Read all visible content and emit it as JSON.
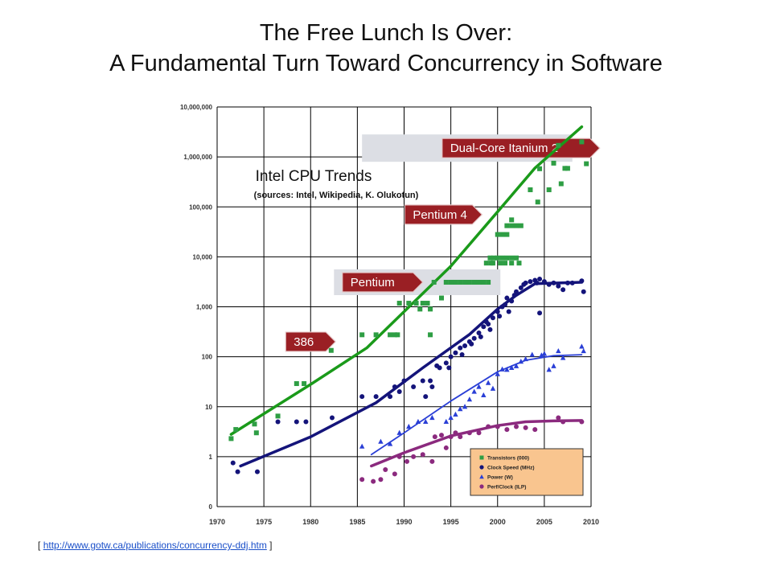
{
  "slide": {
    "title_line1": "The Free Lunch Is Over:",
    "title_line2": "A Fundamental Turn Toward Concurrency in Software",
    "source_prefix": "[",
    "source_url": "http://www.gotw.ca/publications/concurrency-ddj.htm",
    "source_suffix": "]"
  },
  "chart_data": {
    "type": "scatter",
    "title": "Intel CPU Trends",
    "subtitle": "(sources: Intel, Wikipedia, K. Olukotun)",
    "y_scale": "log",
    "y_ticks": [
      "0",
      "1",
      "10",
      "100",
      "1,000",
      "10,000",
      "100,000",
      "1,000,000",
      "10,000,000"
    ],
    "y_tick_values": [
      0.1,
      1,
      10,
      100,
      1000,
      10000,
      100000,
      1000000,
      10000000
    ],
    "x_ticks": [
      "1970",
      "1975",
      "1980",
      "1985",
      "1990",
      "1995",
      "2000",
      "2005",
      "2010"
    ],
    "xlim": [
      1970,
      2010
    ],
    "grid": true,
    "legend_position": "bottom-right",
    "colors": {
      "transistors": "#2e9e44",
      "clock": "#14147a",
      "power": "#2a3fd6",
      "perf": "#8b2a7e",
      "transistor_trend": "#1a9a1a",
      "legend_bg": "#f9c58f",
      "arrow_fill": "#9a1f24",
      "band_fill": "#dcdee4"
    },
    "annotations": [
      {
        "label": "Dual-Core Itanium 2",
        "x": 2002.5,
        "y": 1500000
      },
      {
        "label": "Pentium 4",
        "x": 1994.2,
        "y": 70000
      },
      {
        "label": "Pentium",
        "x": 1987.7,
        "y": 3100
      },
      {
        "label": "386",
        "x": 1980.0,
        "y": 200
      }
    ],
    "series": [
      {
        "name": "Transistors (000)",
        "marker": "square",
        "trend": [
          [
            1971.5,
            2.8
          ],
          [
            1980,
            28
          ],
          [
            1986,
            150
          ],
          [
            1990,
            800
          ],
          [
            1995,
            6500
          ],
          [
            2000,
            80000
          ],
          [
            2004,
            600000
          ],
          [
            2009,
            4000000
          ]
        ],
        "points": [
          [
            1971.5,
            2.3
          ],
          [
            1972,
            3.5
          ],
          [
            1974,
            4.5
          ],
          [
            1974.2,
            3
          ],
          [
            1976.5,
            6.5
          ],
          [
            1978.5,
            29
          ],
          [
            1979.3,
            29
          ],
          [
            1982.2,
            134
          ],
          [
            1985.5,
            275
          ],
          [
            1987,
            275
          ],
          [
            1988.5,
            275
          ],
          [
            1989,
            275
          ],
          [
            1989.3,
            275
          ],
          [
            1989.5,
            1180
          ],
          [
            1990.5,
            1180
          ],
          [
            1991.3,
            1180
          ],
          [
            1991.7,
            900
          ],
          [
            1992,
            1180
          ],
          [
            1992.5,
            1180
          ],
          [
            1992.8,
            900
          ],
          [
            1992.8,
            275
          ],
          [
            1993.2,
            3100
          ],
          [
            1994,
            1500
          ],
          [
            1994.5,
            3100
          ],
          [
            1995,
            3100
          ],
          [
            1995.5,
            3100
          ],
          [
            1996,
            3100
          ],
          [
            1996.5,
            3100
          ],
          [
            1997,
            3100
          ],
          [
            1997.5,
            3100
          ],
          [
            1998,
            3100
          ],
          [
            1998.5,
            3100
          ],
          [
            1998.8,
            7500
          ],
          [
            1999,
            3100
          ],
          [
            1999.2,
            9500
          ],
          [
            1999.6,
            9500
          ],
          [
            2000,
            9500
          ],
          [
            2000.5,
            9500
          ],
          [
            2001,
            9500
          ],
          [
            2001.5,
            9500
          ],
          [
            2002,
            9500
          ],
          [
            2002.3,
            7500
          ],
          [
            1999.3,
            7500
          ],
          [
            1999.5,
            7500
          ],
          [
            2000.3,
            7500
          ],
          [
            2000.8,
            7500
          ],
          [
            2001.5,
            7500
          ],
          [
            2000,
            28000
          ],
          [
            2000.5,
            28000
          ],
          [
            2001,
            28000
          ],
          [
            2001,
            42000
          ],
          [
            2001.5,
            42000
          ],
          [
            2002,
            42000
          ],
          [
            2002.5,
            42000
          ],
          [
            2001.5,
            55000
          ],
          [
            2003.5,
            220000
          ],
          [
            2004.3,
            125000
          ],
          [
            2004.5,
            580000
          ],
          [
            2005.5,
            220000
          ],
          [
            2006,
            750000
          ],
          [
            2006.5,
            1700000
          ],
          [
            2006.8,
            290000
          ],
          [
            2007.2,
            590000
          ],
          [
            2007.5,
            590000
          ],
          [
            2009,
            2000000
          ],
          [
            2009.5,
            730000
          ]
        ]
      },
      {
        "name": "Clock Speed (MHz)",
        "marker": "circle",
        "trend": [
          [
            1972.5,
            0.65
          ],
          [
            1980,
            2.5
          ],
          [
            1987,
            12
          ],
          [
            1992,
            60
          ],
          [
            1997,
            280
          ],
          [
            2000,
            900
          ],
          [
            2002,
            1700
          ],
          [
            2004,
            2900
          ],
          [
            2009,
            3100
          ]
        ],
        "points": [
          [
            1971.7,
            0.75
          ],
          [
            1972.2,
            0.5
          ],
          [
            1974.3,
            0.5
          ],
          [
            1976.5,
            5
          ],
          [
            1978.5,
            5
          ],
          [
            1979.5,
            5
          ],
          [
            1982.3,
            6
          ],
          [
            1985.5,
            16
          ],
          [
            1987,
            16
          ],
          [
            1988.5,
            16
          ],
          [
            1989,
            25
          ],
          [
            1989.5,
            20
          ],
          [
            1990,
            33
          ],
          [
            1991,
            25
          ],
          [
            1992,
            33
          ],
          [
            1992.8,
            33
          ],
          [
            1992.3,
            16
          ],
          [
            1993,
            25
          ],
          [
            1993.5,
            66
          ],
          [
            1994.5,
            75
          ],
          [
            1995,
            100
          ],
          [
            1995.5,
            120
          ],
          [
            1996,
            150
          ],
          [
            1996.5,
            166
          ],
          [
            1997,
            200
          ],
          [
            1997.5,
            233
          ],
          [
            1998,
            300
          ],
          [
            1998.5,
            400
          ],
          [
            1999,
            450
          ],
          [
            1999.5,
            600
          ],
          [
            2000,
            800
          ],
          [
            2000.5,
            1000
          ],
          [
            2001,
            1500
          ],
          [
            2001.5,
            1300
          ],
          [
            2002,
            2000
          ],
          [
            2002.5,
            2400
          ],
          [
            2003,
            3000
          ],
          [
            2003.5,
            3200
          ],
          [
            2004,
            3400
          ],
          [
            2004.5,
            3600
          ],
          [
            2005,
            3200
          ],
          [
            2005.5,
            2800
          ],
          [
            2006,
            3000
          ],
          [
            2006.5,
            2600
          ],
          [
            2007,
            2200
          ],
          [
            2007.5,
            3000
          ],
          [
            2008,
            3000
          ],
          [
            2009,
            3300
          ],
          [
            2009.2,
            2000
          ],
          [
            1998.2,
            250
          ],
          [
            1999.2,
            350
          ],
          [
            2000.2,
            650
          ],
          [
            2001.2,
            800
          ],
          [
            2001.8,
            1700
          ],
          [
            2002.8,
            2800
          ],
          [
            2004.2,
            3000
          ],
          [
            2004.5,
            750
          ],
          [
            1997.2,
            180
          ],
          [
            1998.8,
            500
          ],
          [
            2000.8,
            1100
          ],
          [
            1996.2,
            110
          ],
          [
            1994.8,
            60
          ],
          [
            1993.8,
            60
          ]
        ]
      },
      {
        "name": "Power (W)",
        "marker": "triangle",
        "trend": [
          [
            1986.5,
            1.1
          ],
          [
            1990,
            3
          ],
          [
            1995,
            13
          ],
          [
            2000,
            50
          ],
          [
            2003,
            85
          ],
          [
            2006,
            105
          ],
          [
            2009,
            110
          ]
        ],
        "points": [
          [
            1985.5,
            1.6
          ],
          [
            1987.5,
            2
          ],
          [
            1988.5,
            1.8
          ],
          [
            1989.5,
            3
          ],
          [
            1990.5,
            4
          ],
          [
            1991.5,
            5
          ],
          [
            1992.3,
            5
          ],
          [
            1993,
            6
          ],
          [
            1994.5,
            5
          ],
          [
            1995,
            6
          ],
          [
            1995.5,
            7
          ],
          [
            1996,
            9
          ],
          [
            1996.5,
            10
          ],
          [
            1997,
            14
          ],
          [
            1997.5,
            20
          ],
          [
            1998,
            25
          ],
          [
            1999,
            30
          ],
          [
            1999.5,
            23
          ],
          [
            2000,
            45
          ],
          [
            2000.5,
            56
          ],
          [
            2001,
            55
          ],
          [
            2001.5,
            60
          ],
          [
            2002,
            65
          ],
          [
            2002.5,
            80
          ],
          [
            2003,
            90
          ],
          [
            2003.7,
            110
          ],
          [
            2005,
            115
          ],
          [
            2005.5,
            55
          ],
          [
            2006,
            65
          ],
          [
            2006.5,
            130
          ],
          [
            2007,
            95
          ],
          [
            2009,
            160
          ],
          [
            2009.2,
            130
          ],
          [
            2004.7,
            107
          ],
          [
            1998.5,
            17
          ]
        ]
      },
      {
        "name": "Perf/Clock (ILP)",
        "marker": "circle",
        "trend": [
          [
            1986.5,
            0.65
          ],
          [
            1990,
            1.2
          ],
          [
            1995,
            2.6
          ],
          [
            2000,
            4.2
          ],
          [
            2003,
            5
          ],
          [
            2006,
            5.2
          ],
          [
            2009,
            5.3
          ]
        ],
        "points": [
          [
            1985.5,
            0.35
          ],
          [
            1986.7,
            0.32
          ],
          [
            1987.5,
            0.35
          ],
          [
            1988,
            0.55
          ],
          [
            1989,
            0.45
          ],
          [
            1989.5,
            1
          ],
          [
            1990.3,
            0.8
          ],
          [
            1991,
            1
          ],
          [
            1992,
            1.1
          ],
          [
            1993,
            0.8
          ],
          [
            1993.3,
            2.5
          ],
          [
            1994,
            2.7
          ],
          [
            1994.5,
            1.5
          ],
          [
            1995,
            2.5
          ],
          [
            1995.5,
            3
          ],
          [
            1996,
            2.5
          ],
          [
            1997,
            3
          ],
          [
            1998,
            3
          ],
          [
            1999,
            4
          ],
          [
            2000,
            4
          ],
          [
            2001,
            3.5
          ],
          [
            2002,
            4
          ],
          [
            2003,
            3.8
          ],
          [
            2004,
            3.5
          ],
          [
            2006.5,
            6
          ],
          [
            2007,
            5
          ],
          [
            2009,
            5
          ]
        ]
      }
    ]
  }
}
